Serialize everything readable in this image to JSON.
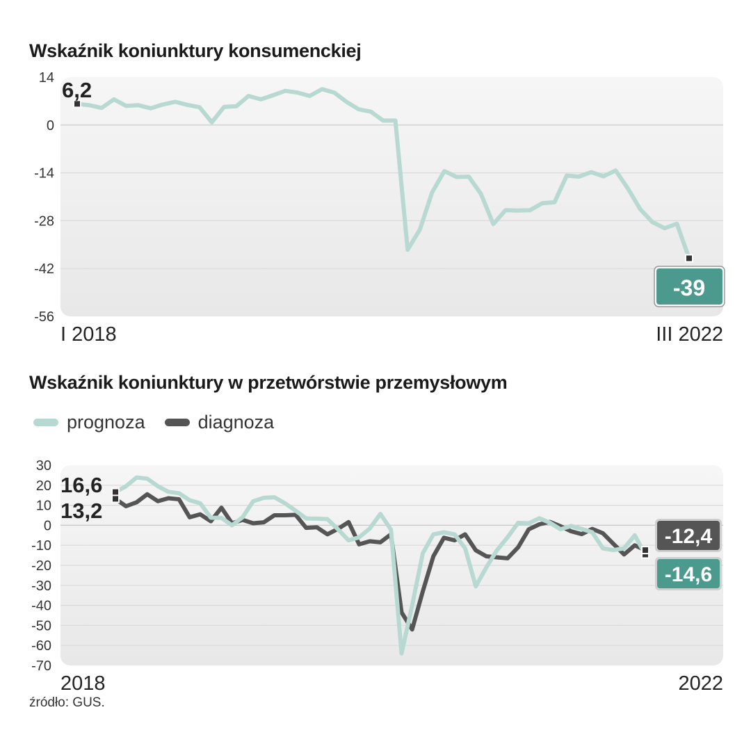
{
  "chart_data": [
    {
      "type": "line",
      "title": "Wskaźnik koniunktury konsumenckiej",
      "ylim": [
        -56,
        14
      ],
      "y_ticks": [
        "14",
        "0",
        "-14",
        "-28",
        "-42",
        "-56"
      ],
      "x_labels": {
        "start": "I 2018",
        "end": "III 2022"
      },
      "color": "#b7d9d2",
      "start_label": "6,2",
      "end_label": "-39",
      "end_badge_color": "#4c9a8d",
      "values": [
        6.2,
        5.8,
        5.0,
        7.5,
        5.6,
        5.8,
        4.9,
        6.0,
        6.8,
        5.9,
        5.2,
        0.8,
        5.3,
        5.5,
        8.5,
        7.5,
        8.7,
        10.0,
        9.5,
        8.5,
        10.5,
        9.5,
        6.8,
        4.6,
        3.9,
        1.3,
        1.3,
        -36.5,
        -30.6,
        -19.7,
        -13.5,
        -15.2,
        -15.1,
        -20.2,
        -29.0,
        -24.9,
        -25.0,
        -24.9,
        -22.9,
        -22.6,
        -14.8,
        -15.1,
        -13.8,
        -15.0,
        -13.3,
        -18.6,
        -24.6,
        -28.4,
        -30.2,
        -28.9,
        -39.0
      ]
    },
    {
      "type": "line",
      "title": "Wskaźnik koniunktury w przetwórstwie przemysłowym",
      "ylim": [
        -70,
        30
      ],
      "y_ticks": [
        "30",
        "20",
        "10",
        "0",
        "-10",
        "-20",
        "-30",
        "-40",
        "-50",
        "-60",
        "-70"
      ],
      "x_labels": {
        "start": "2018",
        "end": "2022"
      },
      "series": [
        {
          "name": "prognoza",
          "color": "#b7d9d2",
          "start_label": "16,6",
          "end_label": "-14,6",
          "end_badge_color": "#4c9a8d",
          "values": [
            16.6,
            19.5,
            23.9,
            23.3,
            19.5,
            16.7,
            16.0,
            12.5,
            11.0,
            3.8,
            3.7,
            0.0,
            4.0,
            12.0,
            13.7,
            14.0,
            11.0,
            7.3,
            3.4,
            3.3,
            3.1,
            -2.0,
            -7.5,
            -6.0,
            -1.6,
            5.7,
            -2.2,
            -64.0,
            -40.0,
            -14.0,
            -4.5,
            -3.5,
            -4.5,
            -11.5,
            -30.5,
            -21.0,
            -12.5,
            -6.0,
            1.2,
            1.0,
            3.5,
            1.3,
            -2.0,
            -0.3,
            -1.8,
            -3.5,
            -11.5,
            -12.4,
            -11.5,
            -5.0,
            -14.6
          ]
        },
        {
          "name": "diagnoza",
          "color": "#555555",
          "start_label": "13,2",
          "end_label": "-12,4",
          "end_badge_color": "#555555",
          "values": [
            13.2,
            9.5,
            11.5,
            15.5,
            12.0,
            13.5,
            13.0,
            4.0,
            5.5,
            2.0,
            8.8,
            1.0,
            2.7,
            1.0,
            1.5,
            5.0,
            5.0,
            5.2,
            -1.3,
            -1.0,
            -4.5,
            -1.8,
            1.6,
            -9.5,
            -8.0,
            -8.5,
            -4.5,
            -43.5,
            -52.0,
            -33.0,
            -15.5,
            -6.2,
            -7.5,
            -4.5,
            -12.5,
            -15.5,
            -16.0,
            -16.5,
            -11.0,
            -2.0,
            0.5,
            1.7,
            -0.5,
            -3.0,
            -4.4,
            -1.8,
            -4.0,
            -9.3,
            -14.6,
            -10.0,
            -12.4
          ]
        }
      ]
    }
  ],
  "source": "źródło: GUS."
}
